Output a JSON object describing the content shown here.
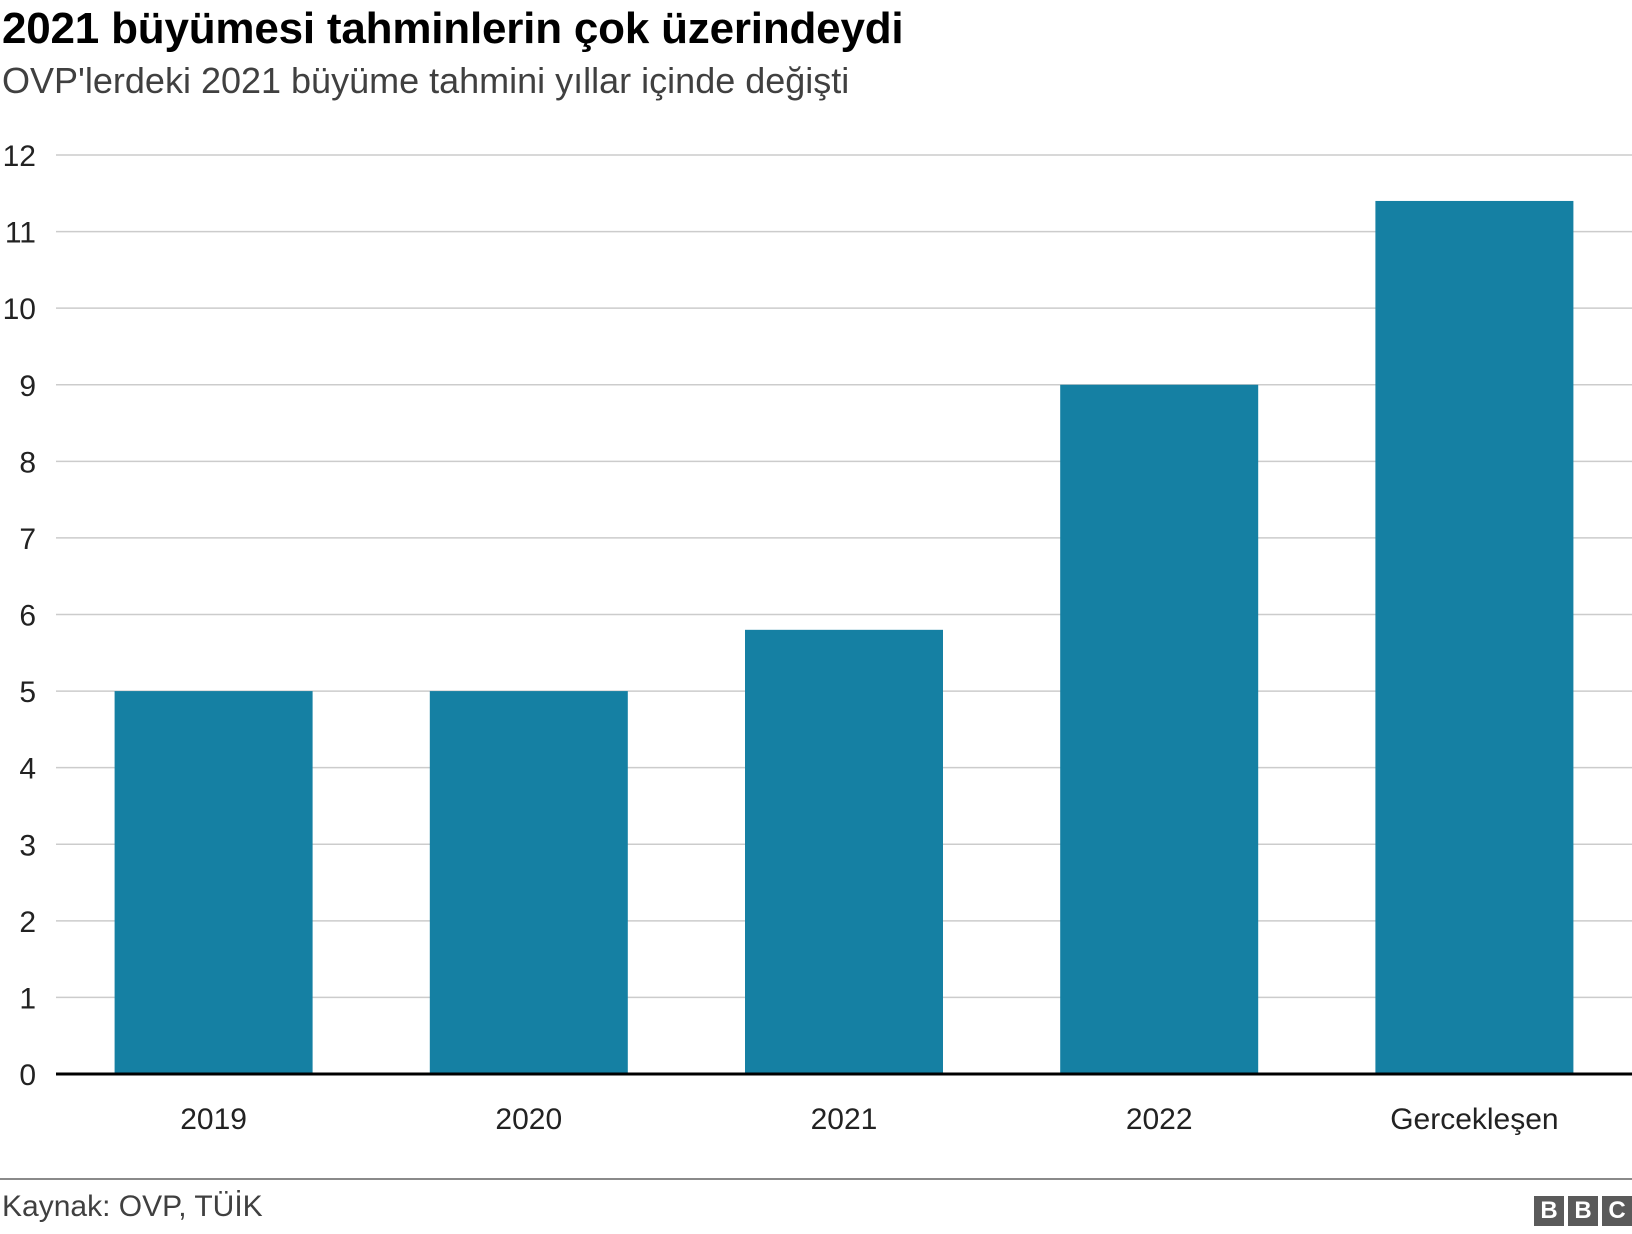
{
  "header": {
    "title": "2021 büyümesi tahminlerin çok üzerindeydi",
    "subtitle": "OVP'lerdeki 2021 büyüme tahmini yıllar içinde değişti"
  },
  "footer": {
    "source": "Kaynak: OVP, TÜİK",
    "logo_letters": [
      "B",
      "B",
      "C"
    ]
  },
  "colors": {
    "bar": "#1580a3",
    "grid": "#cccccc",
    "axis": "#000000"
  },
  "chart_data": {
    "type": "bar",
    "categories": [
      "2019",
      "2020",
      "2021",
      "2022",
      "Gercekleşen"
    ],
    "values": [
      5,
      5,
      5.8,
      9,
      11.4
    ],
    "title": "2021 büyümesi tahminlerin çok üzerindeydi",
    "subtitle": "OVP'lerdeki 2021 büyüme tahmini yıllar içinde değişti",
    "xlabel": "",
    "ylabel": "",
    "ylim": [
      0,
      12
    ],
    "yticks": [
      0,
      1,
      2,
      3,
      4,
      5,
      6,
      7,
      8,
      9,
      10,
      11,
      12
    ],
    "grid": true,
    "legend": "none"
  }
}
